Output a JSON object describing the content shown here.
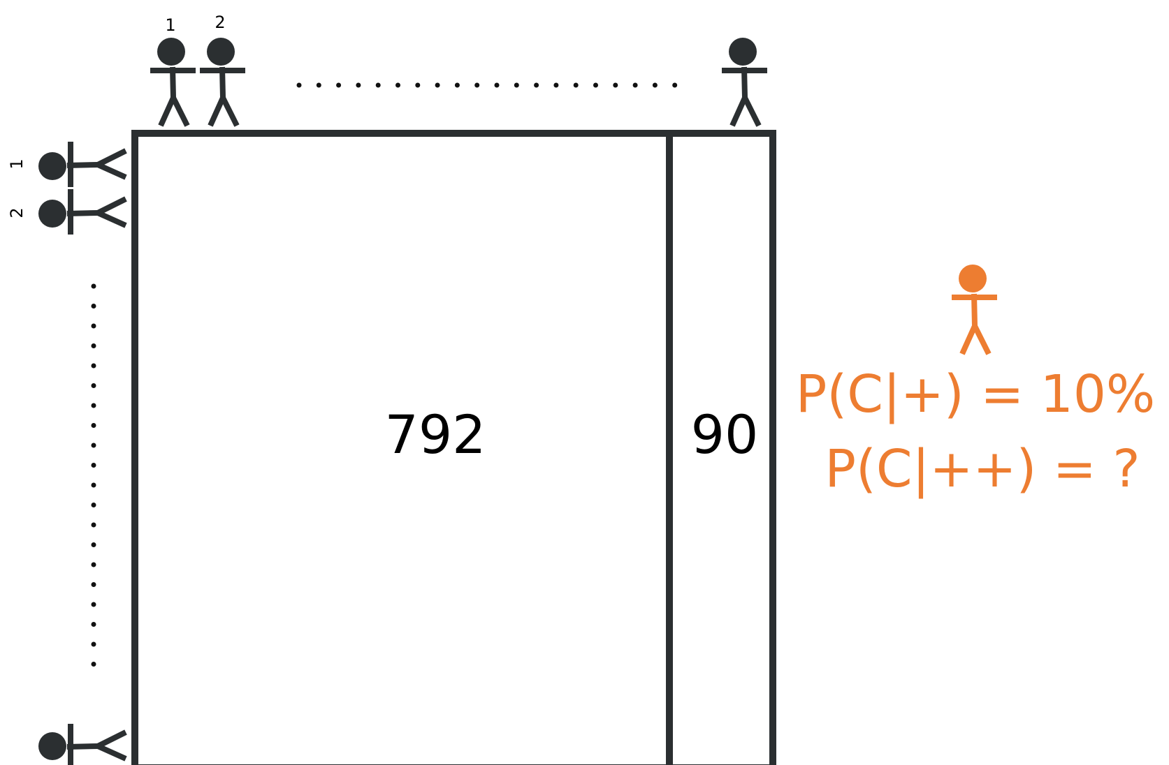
{
  "top_row": {
    "index_1": "1",
    "index_2": "2"
  },
  "left_column": {
    "index_1": "1",
    "index_2": "2"
  },
  "grid": {
    "big_cell_count": "792",
    "small_cell_count": "90"
  },
  "highlight_person": {
    "line_1": "P(C|+) = 10%",
    "line_2": "P(C|++) = ?"
  },
  "colors": {
    "figure": "#2b2f31",
    "highlight": "#ed7d31"
  },
  "icons": {
    "person": "stick-figure-icon",
    "ellipsis": "dotted-ellipsis"
  }
}
